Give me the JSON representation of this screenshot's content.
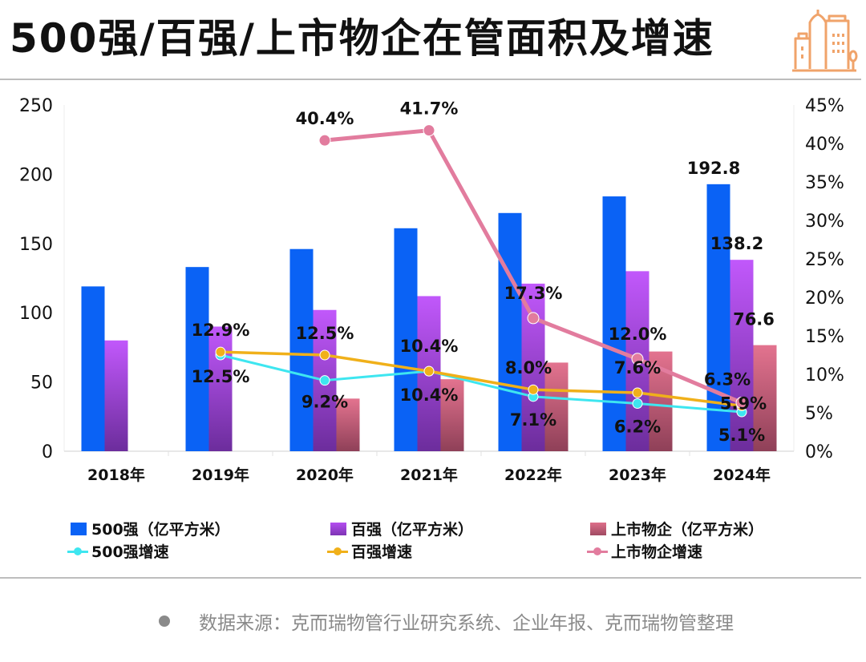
{
  "header": {
    "title": "500强/百强/上市物企在管面积及增速",
    "logo_icon": "city-buildings-icon"
  },
  "chart_data": {
    "type": "bar",
    "title": "500强/百强/上市物企在管面积及增速",
    "categories": [
      "2018年",
      "2019年",
      "2020年",
      "2021年",
      "2022年",
      "2023年",
      "2024年"
    ],
    "y_left": {
      "ticks": [
        "0",
        "50",
        "100",
        "150",
        "200",
        "250"
      ],
      "ylim": [
        0,
        250
      ]
    },
    "y_right": {
      "ticks": [
        "0%",
        "5%",
        "10%",
        "15%",
        "20%",
        "25%",
        "30%",
        "35%",
        "40%",
        "45%"
      ],
      "ylim": [
        0,
        45
      ]
    },
    "bar_series": [
      {
        "name": "500强（亿平方米）",
        "color": "#0a62f5",
        "values": [
          119,
          133,
          146,
          161,
          172,
          184,
          192.8
        ],
        "labels": [
          null,
          null,
          null,
          null,
          null,
          null,
          "192.8"
        ]
      },
      {
        "name": "百强（亿平方米）",
        "color": "#b44ef0",
        "values": [
          80,
          90,
          102,
          112,
          121,
          130,
          138.2
        ],
        "labels": [
          null,
          null,
          null,
          null,
          null,
          null,
          "138.2"
        ]
      },
      {
        "name": "上市物企（亿平方米）",
        "color": "#d96f8c",
        "values": [
          null,
          null,
          38,
          52,
          64,
          72,
          76.6
        ],
        "labels": [
          null,
          null,
          null,
          null,
          null,
          null,
          "76.6"
        ]
      }
    ],
    "line_series": [
      {
        "name": "500强增速",
        "color": "#3ee6f0",
        "values": [
          null,
          12.5,
          9.2,
          10.4,
          7.1,
          6.2,
          5.1
        ],
        "labels": [
          null,
          "12.5%",
          "9.2%",
          "10.4%",
          "7.1%",
          "6.2%",
          "5.1%"
        ]
      },
      {
        "name": "百强增速",
        "color": "#f0b01a",
        "values": [
          null,
          12.9,
          12.5,
          10.4,
          8.0,
          7.6,
          5.9
        ],
        "labels": [
          null,
          "12.9%",
          "12.5%",
          "10.4%",
          "8.0%",
          "7.6%",
          "5.9%"
        ]
      },
      {
        "name": "上市物企增速",
        "color": "#e27c9e",
        "values": [
          null,
          null,
          40.4,
          41.7,
          17.3,
          12.0,
          6.3
        ],
        "labels": [
          null,
          null,
          "40.4%",
          "41.7%",
          "17.3%",
          "12.0%",
          "6.3%"
        ]
      }
    ],
    "grid": false,
    "legend_position": "bottom"
  },
  "legend": {
    "items": [
      {
        "label": "500强（亿平方米）",
        "kind": "bar",
        "color": "#0a62f5"
      },
      {
        "label": "百强（亿平方米）",
        "kind": "bar",
        "color": "#a547e0"
      },
      {
        "label": "上市物企（亿平方米）",
        "kind": "bar",
        "color": "#c96680"
      },
      {
        "label": "500强增速",
        "kind": "line",
        "color": "#3ee6f0"
      },
      {
        "label": "百强增速",
        "kind": "line",
        "color": "#f0b01a"
      },
      {
        "label": "上市物企增速",
        "kind": "line",
        "color": "#e27c9e"
      }
    ]
  },
  "footer": {
    "source": "数据来源：克而瑞物管行业研究系统、企业年报、克而瑞物管整理"
  }
}
